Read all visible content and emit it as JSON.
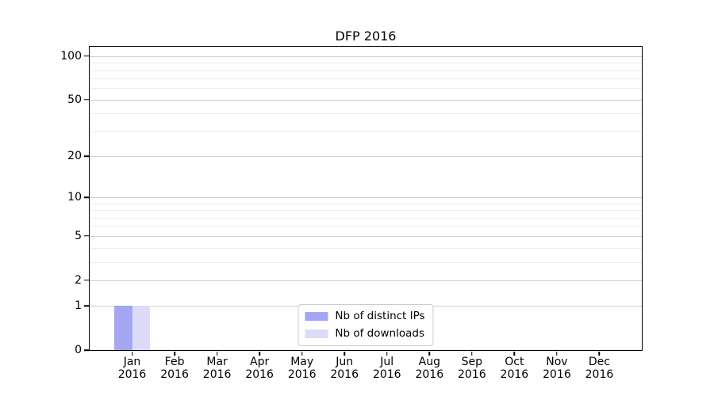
{
  "chart_data": {
    "type": "bar",
    "title": "DFP 2016",
    "categories": [
      "Jan 2016",
      "Feb 2016",
      "Mar 2016",
      "Apr 2016",
      "May 2016",
      "Jun 2016",
      "Jul 2016",
      "Aug 2016",
      "Sep 2016",
      "Oct 2016",
      "Nov 2016",
      "Dec 2016"
    ],
    "series": [
      {
        "name": "Nb of distinct IPs",
        "color": "#a5a5f2",
        "values": [
          1,
          0,
          0,
          0,
          0,
          0,
          0,
          0,
          0,
          0,
          0,
          0
        ]
      },
      {
        "name": "Nb of downloads",
        "color": "#dcdcf8",
        "values": [
          1,
          0,
          0,
          0,
          0,
          0,
          0,
          0,
          0,
          0,
          0,
          0
        ]
      }
    ],
    "xlabel": "",
    "ylabel": "",
    "yscale": "log1p",
    "yticks": [
      0,
      1,
      2,
      5,
      10,
      20,
      50,
      100
    ],
    "yminorticks": [
      3,
      4,
      6,
      7,
      8,
      9,
      30,
      40,
      60,
      70,
      80,
      90
    ],
    "ylim": [
      0,
      116
    ],
    "grid": true,
    "legend_position": "lower center",
    "colors": {
      "grid_major": "#d0d0d0",
      "grid_minor": "#ebebeb",
      "axis": "#000000",
      "legend_border": "#cccccc",
      "text": "#000000"
    }
  }
}
